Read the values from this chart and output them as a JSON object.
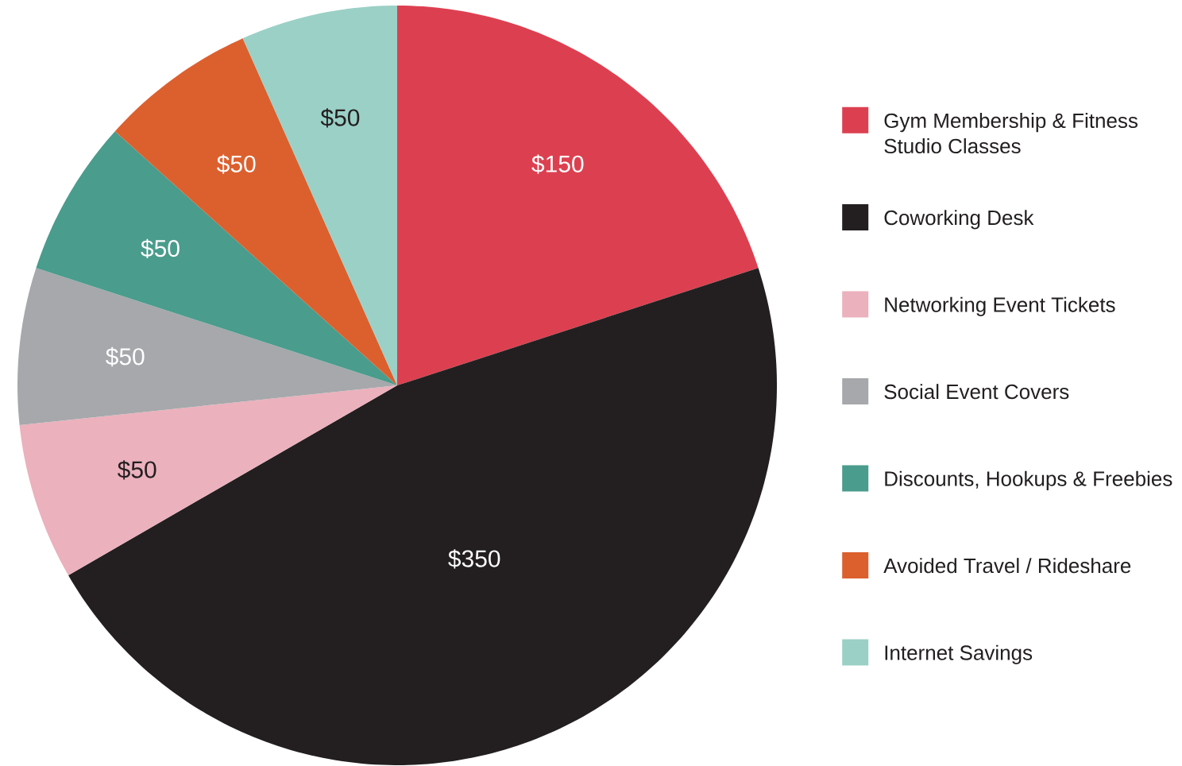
{
  "chart_data": {
    "type": "pie",
    "categories": [
      "Gym Membership & Fitness Studio Classes",
      "Coworking Desk",
      "Networking Event Tickets",
      "Social Event Covers",
      "Discounts, Hookups & Freebies",
      "Avoided Travel / Rideshare",
      "Internet Savings"
    ],
    "values": [
      150,
      350,
      50,
      50,
      50,
      50,
      50
    ],
    "colors": [
      "#dc4050",
      "#231f20",
      "#ebb1bd",
      "#a6a8ab",
      "#4a9c8c",
      "#dc602e",
      "#9bd0c6"
    ],
    "value_labels": [
      "$150",
      "$350",
      "$50",
      "$50",
      "$50",
      "$50",
      "$50"
    ],
    "legend": "right"
  }
}
